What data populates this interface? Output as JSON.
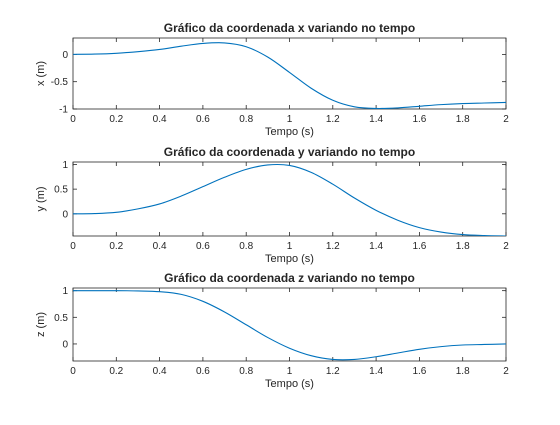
{
  "colors": {
    "series": "#0072BD",
    "axes": "#262626",
    "background": "#ffffff"
  },
  "chart_data": [
    {
      "type": "line",
      "title": "Gráfico da coordenada x variando no tempo",
      "xlabel": "Tempo (s)",
      "ylabel": "x (m)",
      "xlim": [
        0,
        2
      ],
      "ylim": [
        -1,
        0.3
      ],
      "xticks": [
        0,
        0.2,
        0.4,
        0.6,
        0.8,
        1,
        1.2,
        1.4,
        1.6,
        1.8,
        2
      ],
      "xtick_labels": [
        "0",
        "0.2",
        "0.4",
        "0.6",
        "0.8",
        "1",
        "1.2",
        "1.4",
        "1.6",
        "1.8",
        "2"
      ],
      "yticks": [
        -1,
        -0.5,
        0
      ],
      "ytick_labels": [
        "-1",
        "-0.5",
        "0"
      ],
      "grid": false,
      "series": [
        {
          "x": [
            0,
            0.1,
            0.2,
            0.3,
            0.4,
            0.5,
            0.6,
            0.7,
            0.8,
            0.9,
            1.0,
            1.1,
            1.2,
            1.3,
            1.4,
            1.5,
            1.6,
            1.7,
            1.8,
            1.9,
            2.0
          ],
          "y": [
            0.0,
            0.005,
            0.02,
            0.05,
            0.09,
            0.15,
            0.2,
            0.21,
            0.14,
            -0.05,
            -0.33,
            -0.62,
            -0.84,
            -0.96,
            -0.99,
            -0.98,
            -0.95,
            -0.92,
            -0.9,
            -0.89,
            -0.88
          ]
        }
      ]
    },
    {
      "type": "line",
      "title": "Gráfico da coordenada y variando no tempo",
      "xlabel": "Tempo (s)",
      "ylabel": "y (m)",
      "xlim": [
        0,
        2
      ],
      "ylim": [
        -0.45,
        1.05
      ],
      "xticks": [
        0,
        0.2,
        0.4,
        0.6,
        0.8,
        1,
        1.2,
        1.4,
        1.6,
        1.8,
        2
      ],
      "xtick_labels": [
        "0",
        "0.2",
        "0.4",
        "0.6",
        "0.8",
        "1",
        "1.2",
        "1.4",
        "1.6",
        "1.8",
        "2"
      ],
      "yticks": [
        0,
        0.5,
        1
      ],
      "ytick_labels": [
        "0",
        "0.5",
        "1"
      ],
      "grid": false,
      "series": [
        {
          "x": [
            0,
            0.1,
            0.2,
            0.3,
            0.4,
            0.5,
            0.6,
            0.7,
            0.8,
            0.9,
            1.0,
            1.1,
            1.2,
            1.3,
            1.4,
            1.5,
            1.6,
            1.7,
            1.8,
            1.9,
            2.0
          ],
          "y": [
            0.0,
            0.005,
            0.03,
            0.1,
            0.2,
            0.36,
            0.55,
            0.74,
            0.9,
            0.99,
            0.98,
            0.84,
            0.6,
            0.32,
            0.07,
            -0.13,
            -0.28,
            -0.37,
            -0.42,
            -0.44,
            -0.45
          ]
        }
      ]
    },
    {
      "type": "line",
      "title": "Gráfico da coordenada z variando no tempo",
      "xlabel": "Tempo (s)",
      "ylabel": "z (m)",
      "xlim": [
        0,
        2
      ],
      "ylim": [
        -0.32,
        1.05
      ],
      "xticks": [
        0,
        0.2,
        0.4,
        0.6,
        0.8,
        1,
        1.2,
        1.4,
        1.6,
        1.8,
        2
      ],
      "xtick_labels": [
        "0",
        "0.2",
        "0.4",
        "0.6",
        "0.8",
        "1",
        "1.2",
        "1.4",
        "1.6",
        "1.8",
        "2"
      ],
      "yticks": [
        0,
        0.5,
        1
      ],
      "ytick_labels": [
        "0",
        "0.5",
        "1"
      ],
      "grid": false,
      "series": [
        {
          "x": [
            0,
            0.1,
            0.2,
            0.3,
            0.4,
            0.5,
            0.6,
            0.7,
            0.8,
            0.9,
            1.0,
            1.1,
            1.2,
            1.3,
            1.4,
            1.5,
            1.6,
            1.7,
            1.8,
            1.9,
            2.0
          ],
          "y": [
            1.0,
            1.0,
            1.0,
            0.995,
            0.98,
            0.93,
            0.8,
            0.6,
            0.36,
            0.12,
            -0.08,
            -0.22,
            -0.29,
            -0.29,
            -0.24,
            -0.17,
            -0.1,
            -0.05,
            -0.02,
            -0.01,
            0.0
          ]
        }
      ]
    }
  ]
}
